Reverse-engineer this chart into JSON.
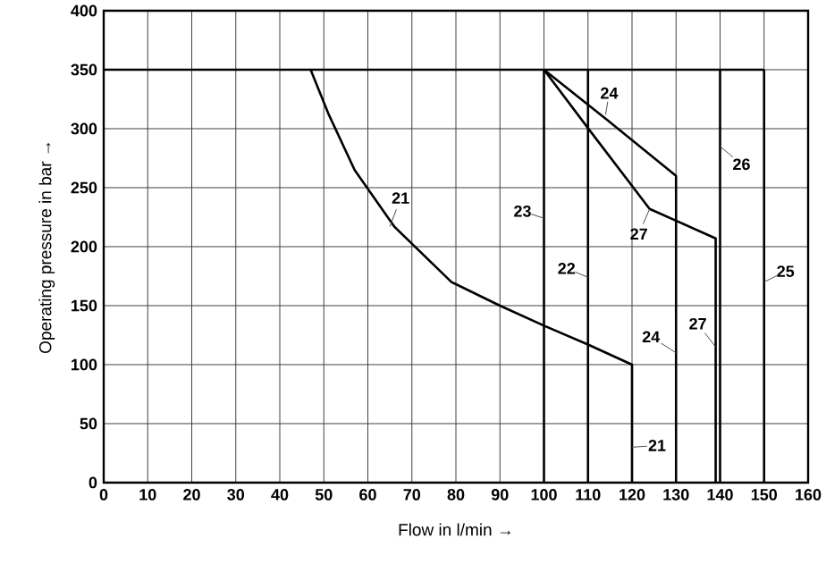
{
  "chart_data": {
    "type": "line",
    "xlabel": "Flow in l/min →",
    "ylabel": "Operating pressure in bar →",
    "xlim": [
      0,
      160
    ],
    "xticks": [
      0,
      10,
      20,
      30,
      40,
      50,
      60,
      70,
      80,
      90,
      100,
      110,
      120,
      130,
      140,
      150,
      160
    ],
    "ylim": [
      0,
      400
    ],
    "yticks": [
      0,
      50,
      100,
      150,
      200,
      250,
      300,
      350,
      400
    ],
    "grid": true,
    "series": [
      {
        "color": "#000000",
        "x": [
          0,
          150
        ],
        "values": [
          350,
          350
        ]
      },
      {
        "color": "#000000",
        "x": [
          47,
          51,
          57,
          66,
          79,
          90,
          100,
          110,
          120,
          120
        ],
        "values": [
          350,
          313,
          265,
          217,
          170,
          150,
          133,
          117,
          100,
          0
        ]
      },
      {
        "color": "#000000",
        "x": [
          110,
          110
        ],
        "values": [
          350,
          0
        ]
      },
      {
        "color": "#000000",
        "x": [
          100,
          100
        ],
        "values": [
          350,
          0
        ]
      },
      {
        "color": "#000000",
        "x": [
          100,
          114.5,
          130,
          130
        ],
        "values": [
          350,
          307,
          260,
          0
        ]
      },
      {
        "color": "#000000",
        "x": [
          100,
          110.5,
          124,
          139,
          139
        ],
        "values": [
          350,
          298,
          232,
          207,
          0
        ]
      },
      {
        "color": "#000000",
        "x": [
          140,
          140
        ],
        "values": [
          350,
          0
        ]
      },
      {
        "color": "#000000",
        "x": [
          150,
          150
        ],
        "values": [
          350,
          0
        ]
      }
    ],
    "annotations": [
      {
        "text": "21",
        "x": 65,
        "y": 217
      },
      {
        "text": "23",
        "x": 100,
        "y": 224
      },
      {
        "text": "22",
        "x": 110,
        "y": 174
      },
      {
        "text": "24",
        "x": 114,
        "y": 312
      },
      {
        "text": "26",
        "x": 140,
        "y": 285
      },
      {
        "text": "27",
        "x": 124,
        "y": 232
      },
      {
        "text": "25",
        "x": 150,
        "y": 170
      },
      {
        "text": "24",
        "x": 130,
        "y": 110
      },
      {
        "text": "27",
        "x": 139,
        "y": 115
      },
      {
        "text": "21",
        "x": 120,
        "y": 30
      }
    ]
  }
}
